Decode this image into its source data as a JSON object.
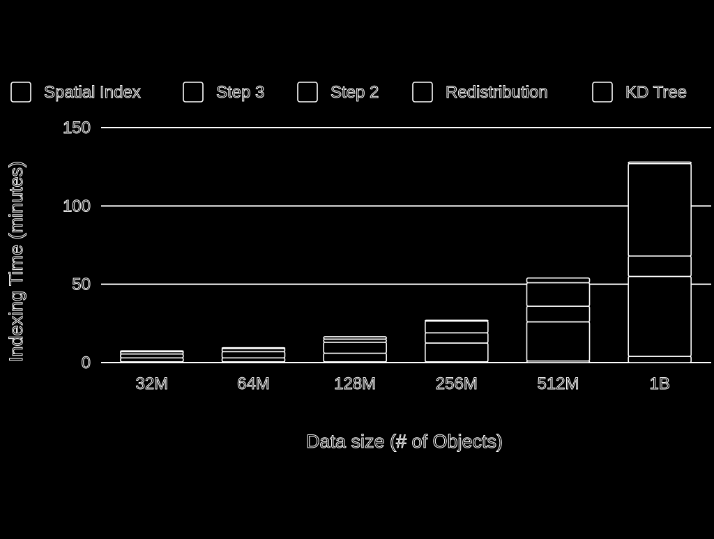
{
  "chart_data": {
    "type": "bar",
    "stacked": true,
    "style": "outline",
    "title": "",
    "xlabel": "Data size (# of Objects)",
    "ylabel": "Indexing Time (minutes)",
    "ylim": [
      0,
      150
    ],
    "yticks": [
      "0",
      "50",
      "100",
      "150"
    ],
    "grid": true,
    "legend_position": "top",
    "categories": [
      "32M",
      "64M",
      "128M",
      "256M",
      "512M",
      "1B"
    ],
    "series": [
      {
        "name": "KD Tree",
        "values": [
          0.5,
          0.5,
          0.5,
          0.5,
          1,
          4
        ]
      },
      {
        "name": "Redistribution",
        "values": [
          2.5,
          2.5,
          5.5,
          12,
          25,
          51
        ]
      },
      {
        "name": "Step 2",
        "values": [
          2.5,
          4,
          7,
          6.5,
          10,
          13
        ]
      },
      {
        "name": "Step 3",
        "values": [
          1.5,
          2,
          2,
          7.5,
          15,
          59
        ]
      },
      {
        "name": "Spatial Index",
        "values": [
          0.5,
          0.5,
          1.5,
          0.5,
          3,
          1
        ]
      }
    ],
    "legend_order": [
      "Spatial Index",
      "Step 3",
      "Step 2",
      "Redistribution",
      "KD Tree"
    ],
    "colors": {
      "background": "#000000",
      "stroke": "#ffffff",
      "text": "#ffffff"
    }
  }
}
